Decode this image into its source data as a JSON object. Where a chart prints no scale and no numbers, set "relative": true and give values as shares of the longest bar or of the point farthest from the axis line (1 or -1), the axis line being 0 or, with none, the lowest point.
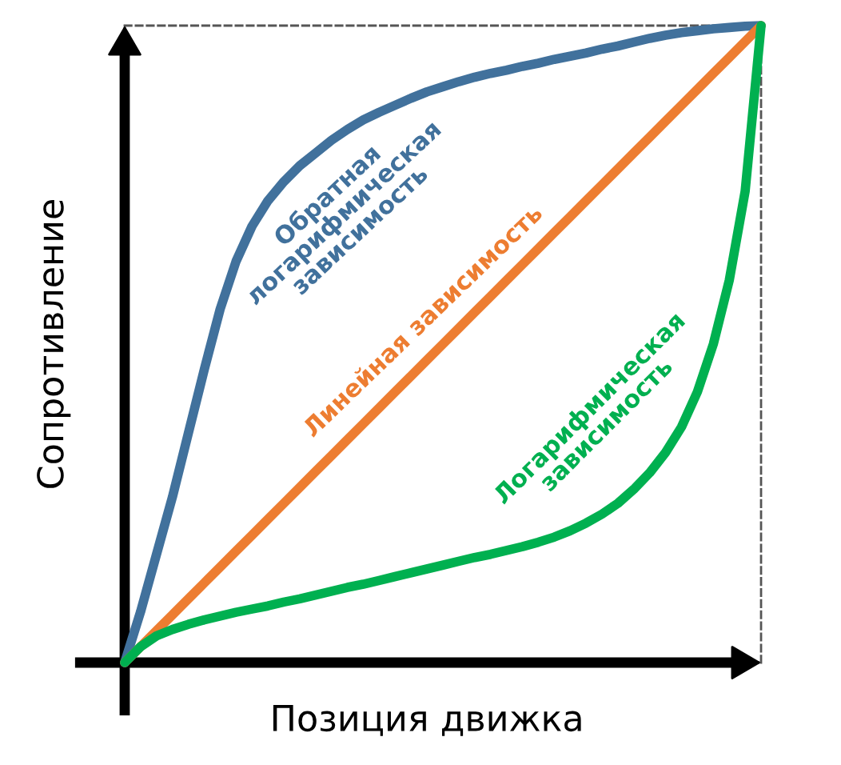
{
  "chart_data": {
    "type": "line",
    "relative": true,
    "xlabel": "Позиция движка",
    "ylabel": "Сопротивление",
    "categories": [
      null,
      null,
      null,
      null,
      null,
      null,
      null,
      null,
      null,
      null,
      null,
      null,
      null,
      null,
      null,
      null,
      null,
      null,
      null,
      null,
      null,
      null,
      null,
      null,
      null,
      null,
      null,
      null,
      null,
      null,
      null,
      null,
      null,
      null,
      null,
      null,
      null,
      null,
      null,
      null,
      null
    ],
    "series": [
      {
        "name": "Обратная\nлогарифмическая\nзависимость",
        "color": "#41719c",
        "values": [
          0,
          0.08,
          0.17,
          0.26,
          0.36,
          0.46,
          0.555,
          0.63,
          0.685,
          0.725,
          0.755,
          0.78,
          0.8,
          0.82,
          0.837,
          0.852,
          0.864,
          0.875,
          0.886,
          0.896,
          0.904,
          0.912,
          0.919,
          0.925,
          0.93,
          0.936,
          0.941,
          0.947,
          0.952,
          0.957,
          0.963,
          0.968,
          0.974,
          0.98,
          0.985,
          0.989,
          0.992,
          0.995,
          0.997,
          0.999,
          1
        ]
      },
      {
        "name": "Линейная зависимость",
        "color": "#ed7d31",
        "values": [
          0,
          0.025,
          0.05,
          0.075,
          0.1,
          0.125,
          0.15,
          0.175,
          0.2,
          0.225,
          0.25,
          0.275,
          0.3,
          0.325,
          0.35,
          0.375,
          0.4,
          0.425,
          0.45,
          0.475,
          0.5,
          0.525,
          0.55,
          0.575,
          0.6,
          0.625,
          0.65,
          0.675,
          0.7,
          0.725,
          0.75,
          0.775,
          0.8,
          0.825,
          0.85,
          0.875,
          0.9,
          0.925,
          0.95,
          0.975,
          1
        ]
      },
      {
        "name": "Логарифмическая\nзависимость",
        "color": "#00b050",
        "values": [
          0,
          0.025,
          0.042,
          0.052,
          0.06,
          0.067,
          0.073,
          0.079,
          0.084,
          0.089,
          0.095,
          0.1,
          0.106,
          0.112,
          0.118,
          0.123,
          0.129,
          0.135,
          0.141,
          0.147,
          0.153,
          0.159,
          0.165,
          0.17,
          0.176,
          0.182,
          0.189,
          0.197,
          0.207,
          0.219,
          0.233,
          0.25,
          0.272,
          0.298,
          0.33,
          0.37,
          0.425,
          0.5,
          0.6,
          0.74,
          1
        ]
      }
    ]
  }
}
